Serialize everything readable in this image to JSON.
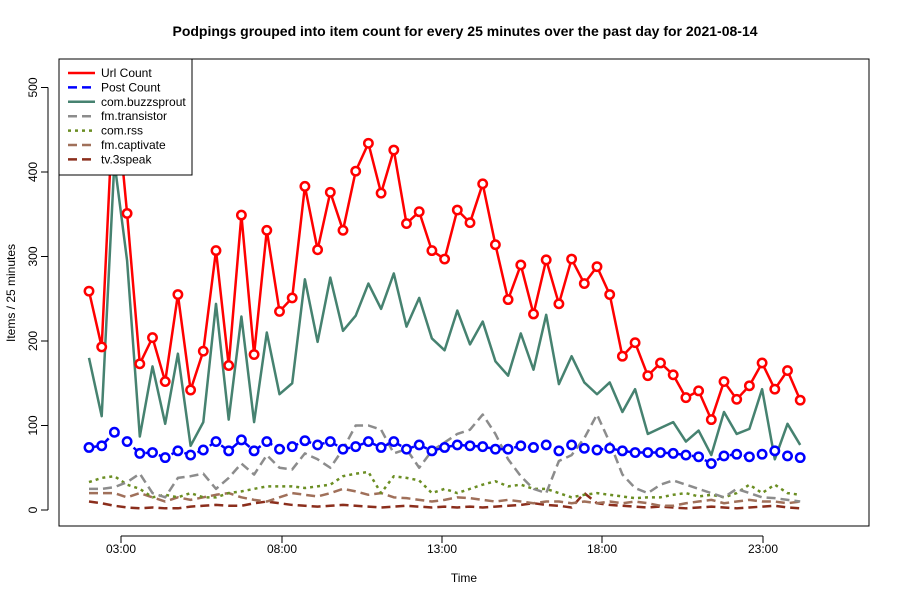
{
  "chart_data": {
    "type": "line",
    "title": "Podpings grouped into item count for every 25 minutes  over the past day for 2021-08-14",
    "xlabel": "Time",
    "ylabel": "Items / 25 minutes",
    "x_tick_labels": [
      "03:00",
      "08:00",
      "13:00",
      "18:00",
      "23:00"
    ],
    "y_ticks": [
      0,
      100,
      200,
      300,
      400,
      500
    ],
    "ylim": [
      0,
      510
    ],
    "legend_position": "top-left",
    "grid": false,
    "series": [
      {
        "name": "Url Count",
        "color": "#ff0000",
        "line_style": "solid",
        "markers": true,
        "values": [
          259,
          193,
          510,
          351,
          173,
          204,
          152,
          255,
          142,
          188,
          307,
          171,
          349,
          184,
          331,
          235,
          251,
          383,
          308,
          376,
          331,
          401,
          434,
          375,
          426,
          339,
          353,
          307,
          297,
          355,
          340,
          386,
          314,
          249,
          290,
          232,
          296,
          244,
          297,
          268,
          288,
          255,
          182,
          198,
          159,
          174,
          160,
          133,
          141,
          107,
          152,
          131,
          147,
          174,
          143,
          165,
          130
        ]
      },
      {
        "name": "Post Count",
        "color": "#0000ff",
        "line_style": "dashed",
        "markers": true,
        "values": [
          74,
          76,
          92,
          81,
          67,
          68,
          62,
          70,
          65,
          71,
          81,
          70,
          83,
          70,
          81,
          72,
          75,
          82,
          77,
          81,
          72,
          75,
          81,
          74,
          81,
          72,
          77,
          70,
          74,
          77,
          76,
          75,
          72,
          72,
          76,
          74,
          77,
          70,
          77,
          73,
          71,
          73,
          70,
          68,
          68,
          68,
          67,
          65,
          63,
          55,
          64,
          66,
          63,
          66,
          70,
          64,
          62
        ]
      },
      {
        "name": "com.buzzsprout",
        "color": "#468270",
        "line_style": "solid",
        "markers": false,
        "values": [
          180,
          111,
          412,
          295,
          87,
          170,
          102,
          185,
          76,
          104,
          244,
          107,
          229,
          104,
          210,
          137,
          150,
          273,
          199,
          275,
          212,
          230,
          268,
          238,
          280,
          217,
          251,
          203,
          189,
          236,
          196,
          223,
          176,
          159,
          209,
          166,
          231,
          149,
          182,
          151,
          137,
          151,
          116,
          143,
          90,
          97,
          104,
          81,
          94,
          65,
          116,
          90,
          96,
          143,
          60,
          102,
          77
        ]
      },
      {
        "name": "fm.transistor",
        "color": "#8c8c8c",
        "line_style": "dashed",
        "markers": false,
        "values": [
          25,
          25,
          27,
          33,
          43,
          20,
          15,
          38,
          40,
          43,
          25,
          38,
          55,
          42,
          65,
          50,
          48,
          67,
          60,
          50,
          72,
          100,
          100,
          95,
          67,
          72,
          50,
          70,
          80,
          90,
          95,
          113,
          90,
          60,
          40,
          25,
          20,
          58,
          65,
          85,
          113,
          80,
          42,
          26,
          20,
          30,
          35,
          30,
          25,
          20,
          15,
          25,
          20,
          15,
          14,
          12,
          10
        ]
      },
      {
        "name": "com.rss",
        "color": "#6b8e23",
        "line_style": "dotted",
        "markers": false,
        "values": [
          33,
          38,
          40,
          30,
          25,
          15,
          18,
          15,
          20,
          15,
          15,
          20,
          22,
          25,
          28,
          28,
          28,
          26,
          28,
          30,
          40,
          43,
          45,
          20,
          40,
          38,
          35,
          20,
          25,
          20,
          25,
          30,
          34,
          28,
          30,
          25,
          25,
          20,
          15,
          18,
          20,
          18,
          16,
          14,
          15,
          15,
          18,
          20,
          16,
          18,
          15,
          20,
          30,
          20,
          30,
          20,
          18
        ]
      },
      {
        "name": "fm.captivate",
        "color": "#a0705a",
        "line_style": "dashed",
        "markers": false,
        "values": [
          20,
          20,
          20,
          15,
          20,
          15,
          10,
          15,
          12,
          15,
          18,
          20,
          15,
          12,
          10,
          15,
          20,
          18,
          16,
          20,
          25,
          22,
          18,
          20,
          15,
          14,
          12,
          10,
          12,
          15,
          14,
          12,
          10,
          12,
          10,
          8,
          10,
          10,
          8,
          10,
          8,
          10,
          8,
          10,
          8,
          5,
          5,
          8,
          10,
          12,
          8,
          10,
          12,
          10,
          10,
          8,
          10
        ]
      },
      {
        "name": "tv.3speak",
        "color": "#8b2e1c",
        "line_style": "dashed",
        "markers": false,
        "values": [
          10,
          8,
          5,
          3,
          2,
          3,
          2,
          2,
          4,
          5,
          6,
          5,
          5,
          8,
          10,
          8,
          6,
          5,
          4,
          5,
          6,
          5,
          4,
          3,
          4,
          5,
          4,
          3,
          4,
          3,
          4,
          3,
          4,
          5,
          6,
          8,
          6,
          5,
          3,
          20,
          8,
          6,
          5,
          4,
          3,
          4,
          3,
          2,
          3,
          4,
          3,
          2,
          3,
          4,
          5,
          3,
          2
        ]
      }
    ]
  }
}
